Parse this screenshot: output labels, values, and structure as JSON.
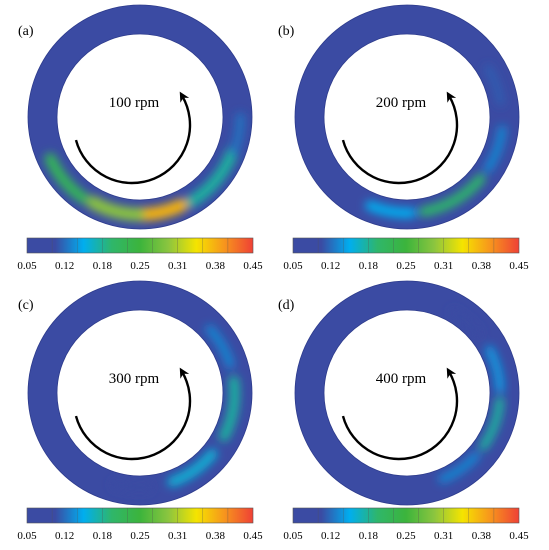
{
  "colormap": {
    "stops": [
      "#3b4ba3",
      "#3b4ba3",
      "#00aeef",
      "#2fb66a",
      "#3cb43c",
      "#8bc53f",
      "#f5e400",
      "#f7941d",
      "#ef4136"
    ],
    "background_color": "#3b4ba3",
    "ticks": [
      "0.05",
      "0.12",
      "0.18",
      "0.25",
      "0.31",
      "0.38",
      "0.45"
    ]
  },
  "panels": [
    {
      "id": "a",
      "tag": "(a)",
      "speed_label": "100 rpm",
      "arrow_icon": "curved-arrow-counterclockwise-icon",
      "field": [
        {
          "angle": 40,
          "spread": 38,
          "radial": 0.55,
          "width": 0.4,
          "value": 0.18
        },
        {
          "angle": 80,
          "spread": 30,
          "radial": 0.5,
          "width": 0.45,
          "value": 0.38
        },
        {
          "angle": 105,
          "spread": 28,
          "radial": 0.5,
          "width": 0.45,
          "value": 0.3
        },
        {
          "angle": 140,
          "spread": 30,
          "radial": 0.55,
          "width": 0.4,
          "value": 0.22
        },
        {
          "angle": 10,
          "spread": 20,
          "radial": 0.6,
          "width": 0.3,
          "value": 0.12
        }
      ]
    },
    {
      "id": "b",
      "tag": "(b)",
      "speed_label": "200 rpm",
      "arrow_icon": "curved-arrow-counterclockwise-icon",
      "field": [
        {
          "angle": 60,
          "spread": 40,
          "radial": 0.45,
          "width": 0.35,
          "value": 0.2
        },
        {
          "angle": 100,
          "spread": 25,
          "radial": 0.45,
          "width": 0.35,
          "value": 0.15
        },
        {
          "angle": 20,
          "spread": 25,
          "radial": 0.45,
          "width": 0.3,
          "value": 0.13
        },
        {
          "angle": -20,
          "spread": 22,
          "radial": 0.4,
          "width": 0.25,
          "value": 0.11
        }
      ]
    },
    {
      "id": "c",
      "tag": "(c)",
      "speed_label": "300 rpm",
      "arrow_icon": "curved-arrow-counterclockwise-icon",
      "field": [
        {
          "angle": 10,
          "spread": 35,
          "radial": 0.4,
          "width": 0.35,
          "value": 0.18
        },
        {
          "angle": 55,
          "spread": 30,
          "radial": 0.4,
          "width": 0.35,
          "value": 0.16
        },
        {
          "angle": -30,
          "spread": 25,
          "radial": 0.4,
          "width": 0.3,
          "value": 0.13
        },
        {
          "angle": 95,
          "spread": 20,
          "radial": 0.4,
          "width": 0.3,
          "value": 0.1
        }
      ]
    },
    {
      "id": "d",
      "tag": "(d)",
      "speed_label": "400 rpm",
      "arrow_icon": "curved-arrow-counterclockwise-icon",
      "field": [
        {
          "angle": 20,
          "spread": 30,
          "radial": 0.35,
          "width": 0.3,
          "value": 0.18
        },
        {
          "angle": -15,
          "spread": 25,
          "radial": 0.35,
          "width": 0.3,
          "value": 0.14
        },
        {
          "angle": 55,
          "spread": 25,
          "radial": 0.35,
          "width": 0.3,
          "value": 0.13
        },
        {
          "angle": -50,
          "spread": 20,
          "radial": 0.35,
          "width": 0.25,
          "value": 0.1
        }
      ]
    }
  ]
}
